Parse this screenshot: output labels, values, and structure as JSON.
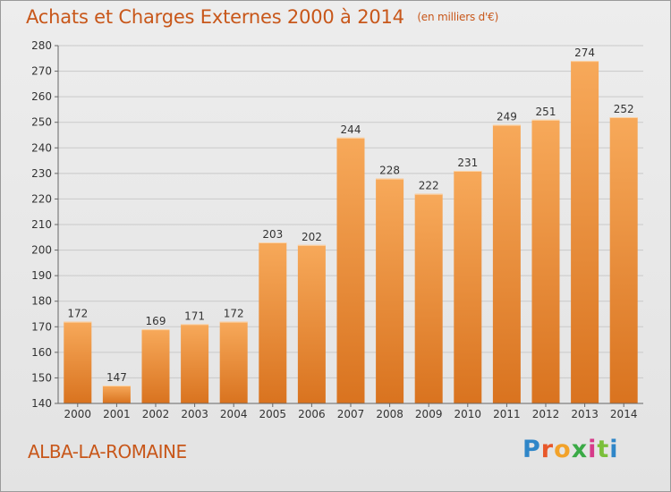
{
  "header": {
    "title": "Achats et Charges Externes 2000 à 2014",
    "unit": "(en milliers d'€)"
  },
  "commune": "ALBA-LA-ROMAINE",
  "brand": {
    "letters": [
      "P",
      "r",
      "o",
      "x",
      "i",
      "t",
      "i"
    ],
    "colors": [
      "#2f86c8",
      "#e8582a",
      "#f2a22a",
      "#3aaa46",
      "#d63b8a",
      "#7bbf3a",
      "#2f86c8"
    ]
  },
  "colors": {
    "bar_light": "#f7a95a",
    "bar_dark": "#d9731f",
    "text": "#c8571a"
  },
  "chart_data": {
    "type": "bar",
    "title": "Achats et Charges Externes 2000 à 2014",
    "subtitle": "(en milliers d'€)",
    "categories": [
      "2000",
      "2001",
      "2002",
      "2003",
      "2004",
      "2005",
      "2006",
      "2007",
      "2008",
      "2009",
      "2010",
      "2011",
      "2012",
      "2013",
      "2014"
    ],
    "values": [
      172,
      147,
      169,
      171,
      172,
      203,
      202,
      244,
      228,
      222,
      231,
      249,
      251,
      274,
      252
    ],
    "ylim": [
      140,
      280
    ],
    "yticks": [
      140,
      150,
      160,
      170,
      180,
      190,
      200,
      210,
      220,
      230,
      240,
      250,
      260,
      270,
      280
    ],
    "grid": true,
    "data_labels": true
  }
}
